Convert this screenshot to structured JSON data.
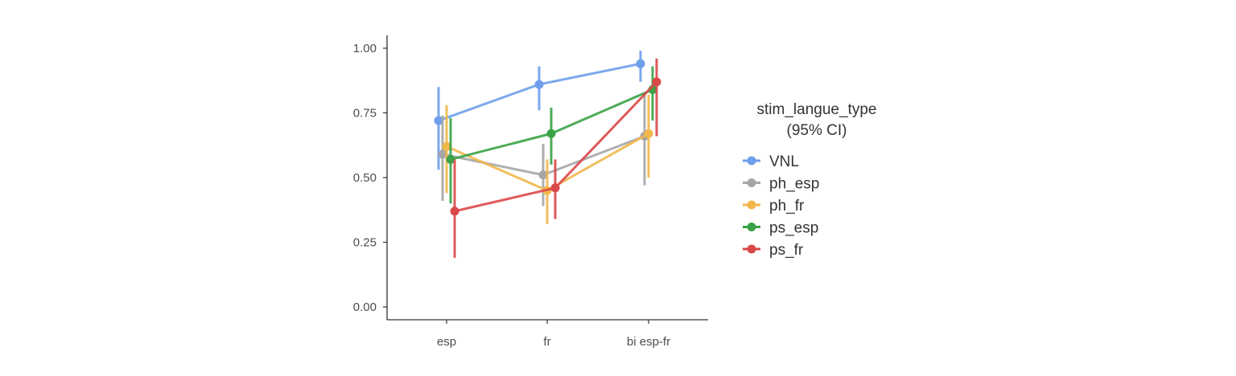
{
  "chart_data": {
    "type": "line",
    "categories": [
      "esp",
      "fr",
      "bi esp-fr"
    ],
    "ylim": [
      0,
      1.0
    ],
    "yticks": [
      {
        "value": 0.0,
        "label": "0.00"
      },
      {
        "value": 0.25,
        "label": "0.25"
      },
      {
        "value": 0.5,
        "label": "0.50"
      },
      {
        "value": 0.75,
        "label": "0.75"
      },
      {
        "value": 1.0,
        "label": "1.00"
      }
    ],
    "legend": {
      "title_line1": "stim_langue_type",
      "title_line2": "(95% CI)",
      "position": "right"
    },
    "grid": false,
    "series": [
      {
        "name": "VNL",
        "color": "#6d9eeb",
        "values": [
          0.72,
          0.86,
          0.94
        ],
        "ci_low": [
          0.53,
          0.76,
          0.87
        ],
        "ci_high": [
          0.85,
          0.93,
          0.99
        ]
      },
      {
        "name": "ph_esp",
        "color": "#a6a6a6",
        "values": [
          0.59,
          0.51,
          0.66
        ],
        "ci_low": [
          0.41,
          0.39,
          0.47
        ],
        "ci_high": [
          0.74,
          0.63,
          0.83
        ]
      },
      {
        "name": "ph_fr",
        "color": "#f1b74a",
        "values": [
          0.62,
          0.45,
          0.67
        ],
        "ci_low": [
          0.44,
          0.32,
          0.5
        ],
        "ci_high": [
          0.78,
          0.57,
          0.82
        ]
      },
      {
        "name": "ps_esp",
        "color": "#3aa346",
        "values": [
          0.57,
          0.67,
          0.84
        ],
        "ci_low": [
          0.4,
          0.55,
          0.72
        ],
        "ci_high": [
          0.73,
          0.77,
          0.93
        ]
      },
      {
        "name": "ps_fr",
        "color": "#db4848",
        "values": [
          0.37,
          0.46,
          0.87
        ],
        "ci_low": [
          0.19,
          0.34,
          0.66
        ],
        "ci_high": [
          0.57,
          0.57,
          0.96
        ]
      }
    ]
  }
}
